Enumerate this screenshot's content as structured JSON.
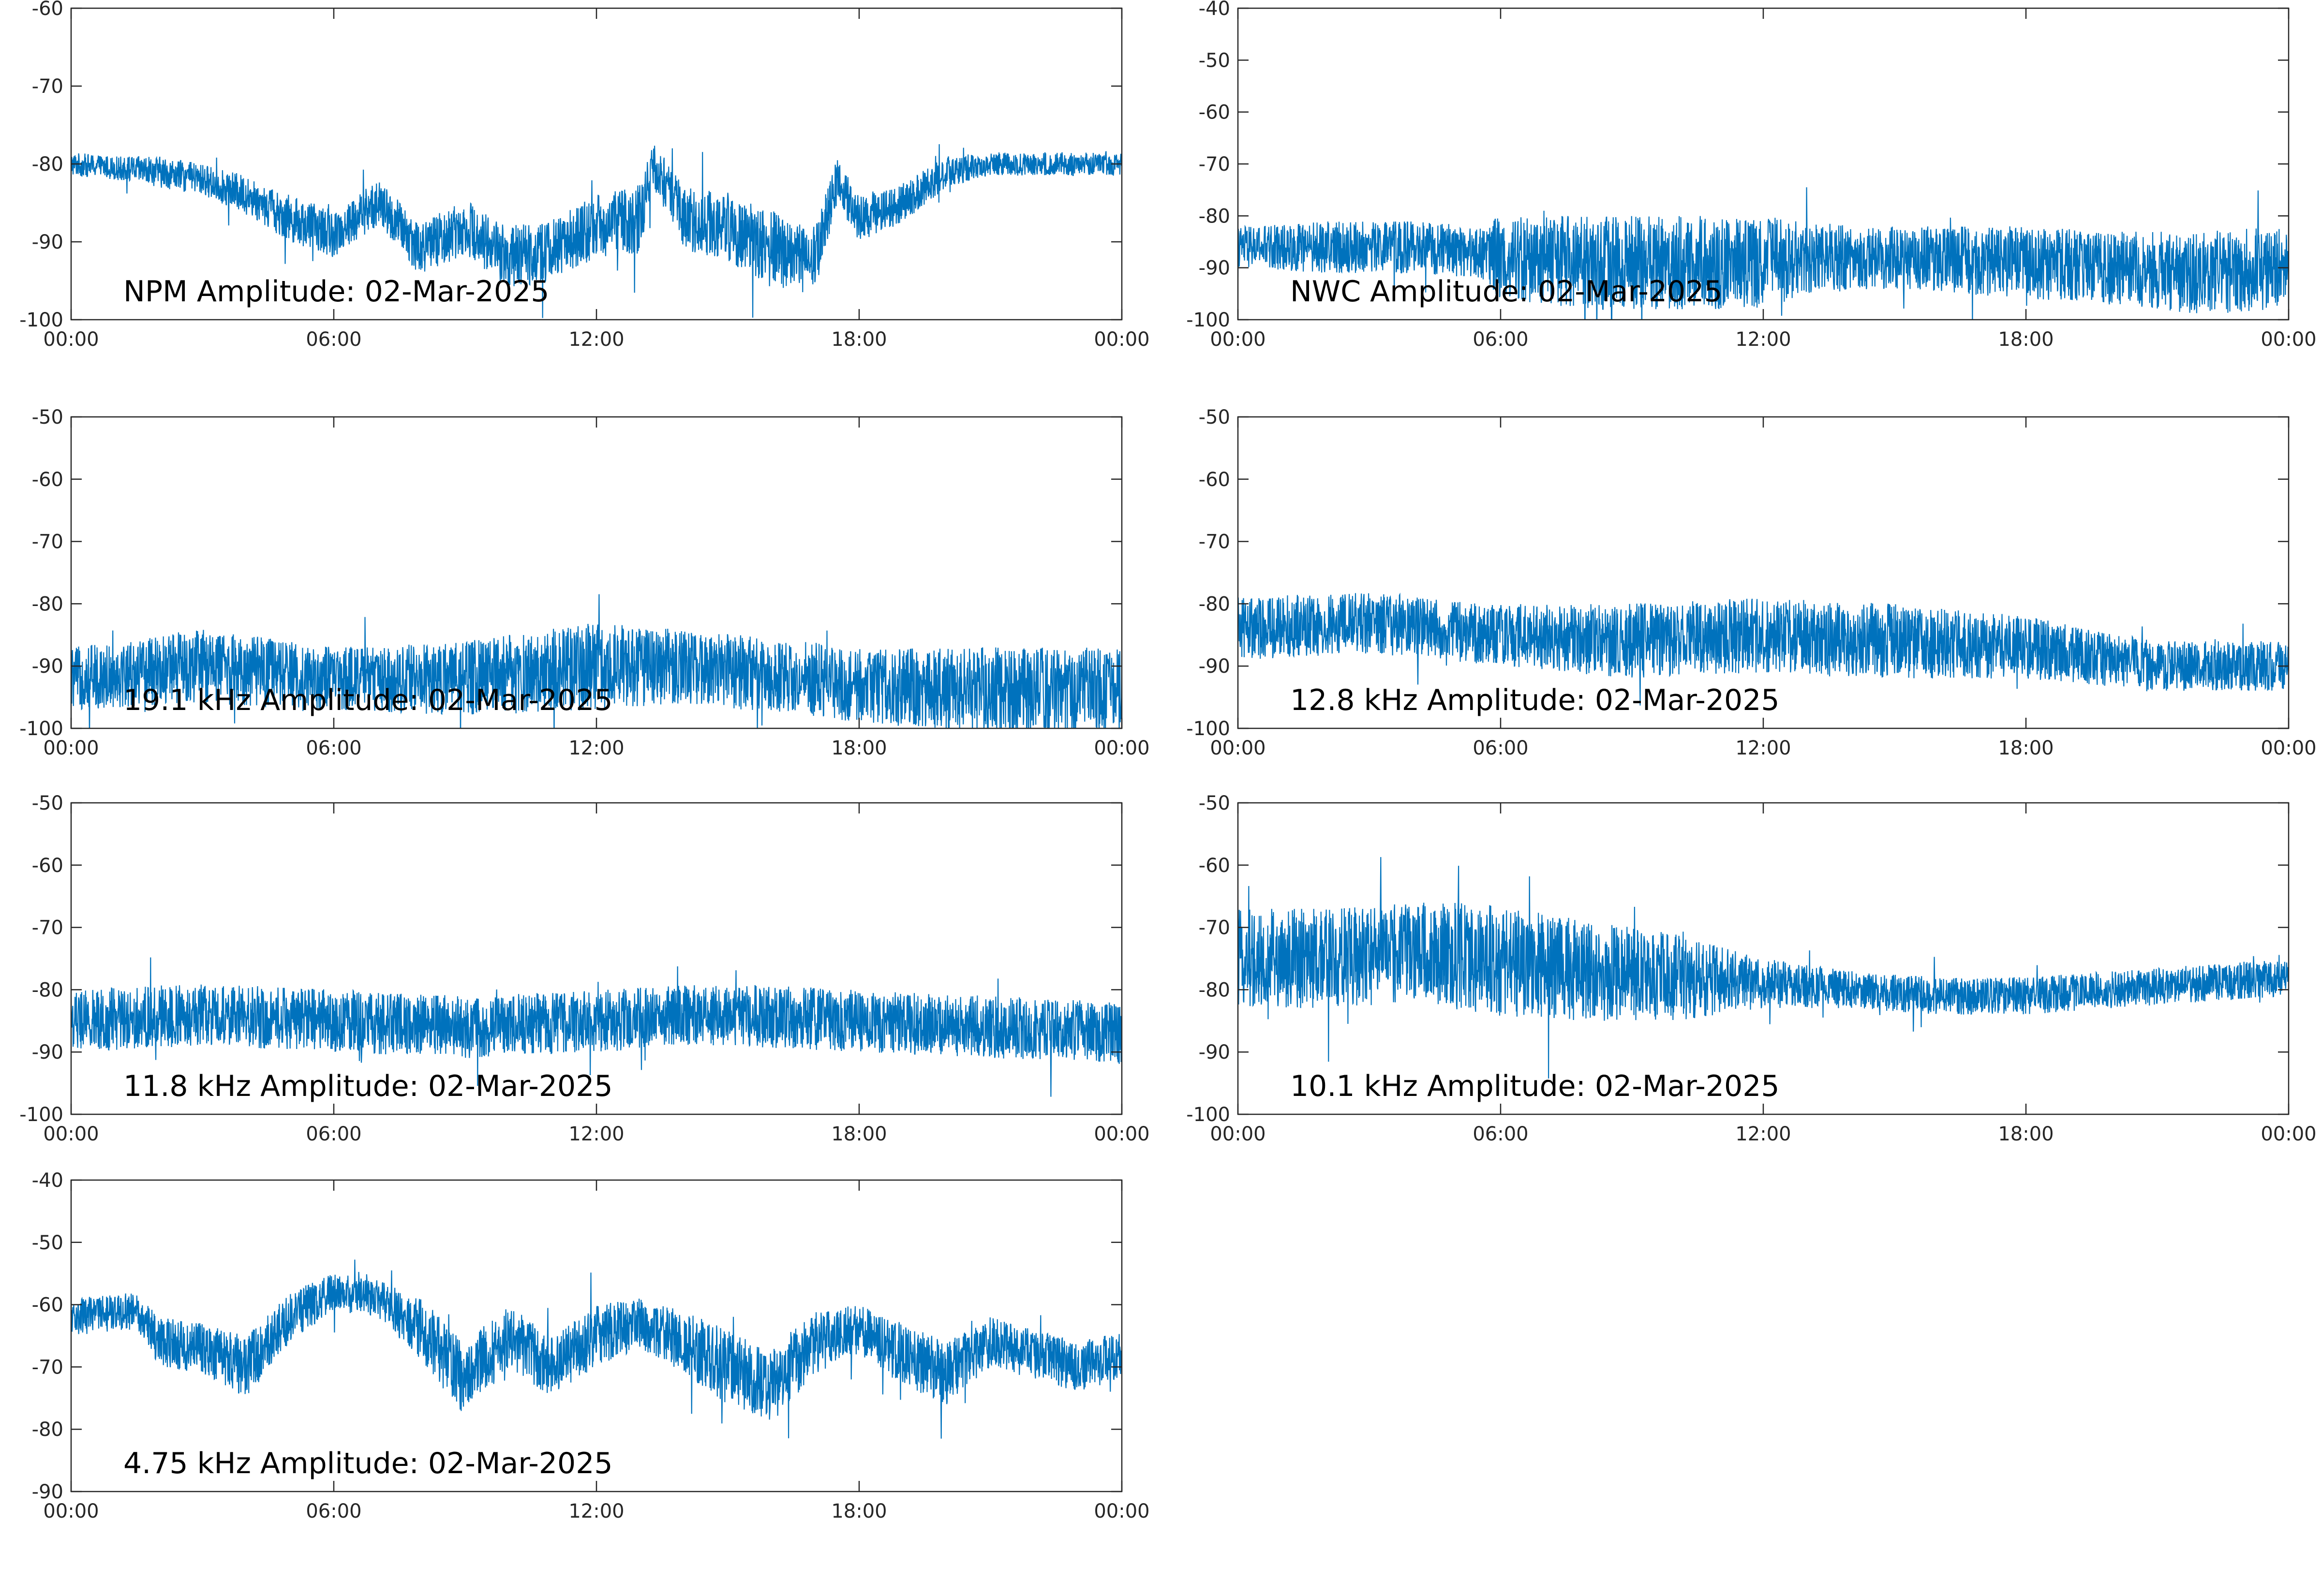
{
  "figure": {
    "background": "#ffffff",
    "line_color": "#0072BD",
    "axis_color": "#262626"
  },
  "chart_data": [
    {
      "type": "line",
      "title": "NPM Amplitude: 02-Mar-2025",
      "xlabel": "",
      "ylabel": "",
      "xlim": [
        0,
        24
      ],
      "ylim": [
        -100,
        -60
      ],
      "xticks": [
        "00:00",
        "06:00",
        "12:00",
        "18:00",
        "00:00"
      ],
      "yticks": [
        "-60",
        "-70",
        "-80",
        "-90",
        "-100"
      ],
      "grid": false,
      "series": [
        {
          "x": [
            0,
            1,
            2,
            3,
            4,
            5,
            6,
            7,
            8,
            9,
            10,
            11,
            12,
            13,
            13.3,
            14,
            15,
            16,
            17,
            17.5,
            18,
            19,
            20,
            21,
            22,
            23,
            24
          ],
          "y": [
            -80,
            -80.5,
            -81,
            -82,
            -84,
            -87,
            -89,
            -85,
            -91,
            -88,
            -92,
            -91,
            -88,
            -87,
            -80,
            -87,
            -88,
            -91,
            -92,
            -82,
            -87,
            -85,
            -81,
            -80,
            -80,
            -80,
            -80
          ],
          "spread": [
            1.5,
            1.5,
            2,
            2,
            2.5,
            3,
            3,
            3,
            3.5,
            3.5,
            4,
            4,
            4,
            4.5,
            3,
            4,
            4.5,
            5,
            4,
            3,
            3,
            2.5,
            2,
            1.5,
            1.5,
            1.5,
            1.5
          ]
        }
      ]
    },
    {
      "type": "line",
      "title": "NWC Amplitude: 02-Mar-2025",
      "xlabel": "",
      "ylabel": "",
      "xlim": [
        0,
        24
      ],
      "ylim": [
        -100,
        -40
      ],
      "xticks": [
        "00:00",
        "06:00",
        "12:00",
        "18:00",
        "00:00"
      ],
      "yticks": [
        "-40",
        "-50",
        "-60",
        "-70",
        "-80",
        "-90",
        "-100"
      ],
      "grid": false,
      "series": [
        {
          "x": [
            0,
            2,
            4,
            5.5,
            6,
            8,
            10,
            12,
            13,
            15,
            18,
            20,
            22,
            24
          ],
          "y": [
            -86,
            -86,
            -86,
            -87,
            -88,
            -89,
            -89,
            -89,
            -88,
            -88,
            -89,
            -90,
            -91,
            -90
          ],
          "spread": [
            4,
            5,
            5,
            5,
            8,
            9,
            9,
            9,
            7,
            6,
            7,
            7,
            8,
            8
          ]
        }
      ]
    },
    {
      "type": "line",
      "title": "19.1 kHz Amplitude: 02-Mar-2025",
      "xlabel": "",
      "ylabel": "",
      "xlim": [
        0,
        24
      ],
      "ylim": [
        -100,
        -50
      ],
      "xticks": [
        "00:00",
        "06:00",
        "12:00",
        "18:00",
        "00:00"
      ],
      "yticks": [
        "-50",
        "-60",
        "-70",
        "-80",
        "-90",
        "-100"
      ],
      "grid": false,
      "series": [
        {
          "x": [
            0,
            3,
            6,
            9,
            12,
            14,
            18,
            21,
            24
          ],
          "y": [
            -92,
            -90,
            -92,
            -92,
            -90,
            -90,
            -93,
            -94,
            -94
          ],
          "spread": [
            5,
            6,
            5,
            6,
            7,
            6,
            6,
            7,
            7
          ]
        }
      ]
    },
    {
      "type": "line",
      "title": "12.8 kHz Amplitude: 02-Mar-2025",
      "xlabel": "",
      "ylabel": "",
      "xlim": [
        0,
        24
      ],
      "ylim": [
        -100,
        -50
      ],
      "xticks": [
        "00:00",
        "06:00",
        "12:00",
        "18:00",
        "00:00"
      ],
      "yticks": [
        "-50",
        "-60",
        "-70",
        "-80",
        "-90",
        "-100"
      ],
      "grid": false,
      "series": [
        {
          "x": [
            0,
            3,
            6,
            9,
            12,
            15,
            18,
            21,
            24
          ],
          "y": [
            -84,
            -83,
            -85,
            -86,
            -85,
            -86,
            -87,
            -90,
            -90
          ],
          "spread": [
            5,
            5,
            5,
            6,
            6,
            6,
            5,
            4,
            4
          ]
        }
      ]
    },
    {
      "type": "line",
      "title": "11.8 kHz Amplitude: 02-Mar-2025",
      "xlabel": "",
      "ylabel": "",
      "xlim": [
        0,
        24
      ],
      "ylim": [
        -100,
        -50
      ],
      "xticks": [
        "00:00",
        "06:00",
        "12:00",
        "18:00",
        "00:00"
      ],
      "yticks": [
        "-50",
        "-60",
        "-70",
        "-80",
        "-90",
        "-100"
      ],
      "grid": false,
      "series": [
        {
          "x": [
            0,
            3,
            6,
            9,
            12,
            15,
            18,
            21,
            24
          ],
          "y": [
            -85,
            -84,
            -85,
            -86,
            -85,
            -84,
            -85,
            -86,
            -87
          ],
          "spread": [
            5,
            5,
            5,
            5,
            5,
            5,
            5,
            5,
            5
          ]
        }
      ]
    },
    {
      "type": "line",
      "title": "10.1 kHz Amplitude: 02-Mar-2025",
      "xlabel": "",
      "ylabel": "",
      "xlim": [
        0,
        24
      ],
      "ylim": [
        -100,
        -50
      ],
      "xticks": [
        "00:00",
        "06:00",
        "12:00",
        "18:00",
        "00:00"
      ],
      "yticks": [
        "-50",
        "-60",
        "-70",
        "-80",
        "-90",
        "-100"
      ],
      "grid": false,
      "series": [
        {
          "x": [
            0,
            2,
            4,
            5.5,
            8,
            10,
            12,
            14,
            16,
            18,
            20,
            22,
            24
          ],
          "y": [
            -75,
            -75,
            -74,
            -75,
            -77,
            -78,
            -79,
            -80,
            -81,
            -81,
            -80,
            -79,
            -78
          ],
          "spread": [
            8,
            8,
            8,
            9,
            8,
            7,
            4,
            3,
            3,
            3,
            3,
            3,
            3
          ]
        }
      ]
    },
    {
      "type": "line",
      "title": "4.75 kHz Amplitude: 02-Mar-2025",
      "xlabel": "",
      "ylabel": "",
      "xlim": [
        0,
        24
      ],
      "ylim": [
        -90,
        -40
      ],
      "xticks": [
        "00:00",
        "06:00",
        "12:00",
        "18:00",
        "00:00"
      ],
      "yticks": [
        "-40",
        "-50",
        "-60",
        "-70",
        "-80",
        "-90"
      ],
      "grid": false,
      "series": [
        {
          "x": [
            0,
            1.5,
            2,
            3,
            4,
            5,
            6,
            7,
            8,
            9,
            10,
            11,
            12,
            13,
            14,
            15,
            16,
            17,
            18,
            19,
            20,
            21,
            22,
            23,
            24
          ],
          "y": [
            -62,
            -61,
            -66,
            -67,
            -70,
            -62,
            -58,
            -59,
            -64,
            -72,
            -65,
            -70,
            -65,
            -63,
            -66,
            -70,
            -73,
            -66,
            -64,
            -68,
            -71,
            -66,
            -68,
            -70,
            -68
          ],
          "spread": [
            3,
            3,
            4,
            4,
            5,
            4,
            3,
            3,
            5,
            6,
            5,
            5,
            5,
            4,
            5,
            6,
            6,
            5,
            4,
            5,
            5,
            4,
            4,
            4,
            4
          ]
        }
      ]
    }
  ]
}
